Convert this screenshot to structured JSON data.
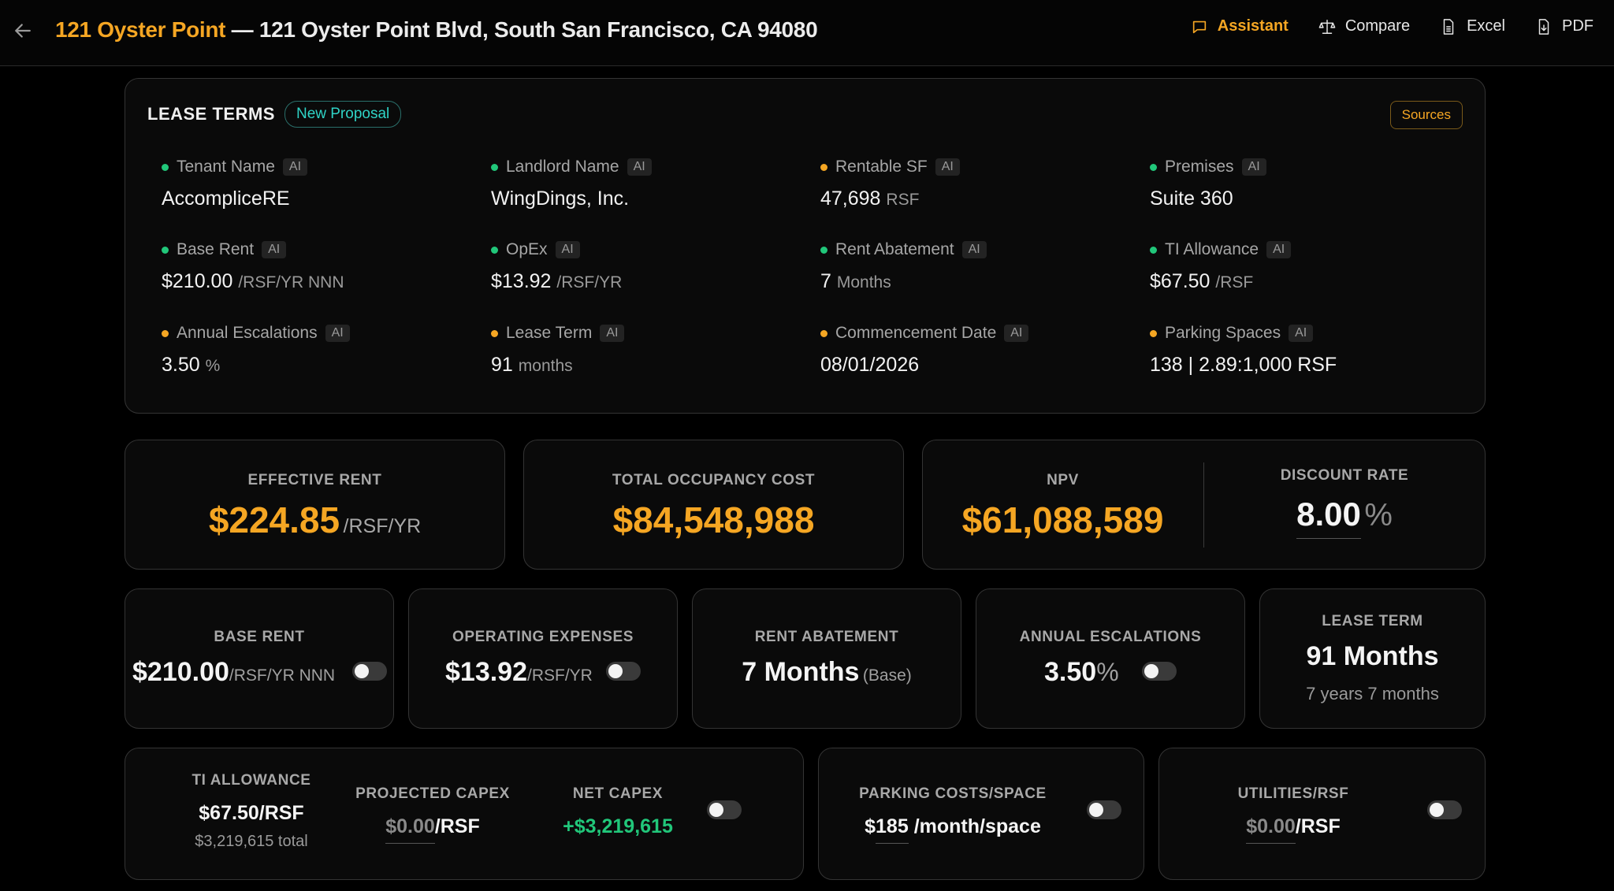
{
  "header": {
    "title_highlight": "121 Oyster Point",
    "title_rest": " — 121 Oyster Point Blvd, South San Francisco, CA 94080",
    "actions": [
      {
        "label": "Assistant",
        "icon": "chat-icon"
      },
      {
        "label": "Compare",
        "icon": "scale-icon"
      },
      {
        "label": "Excel",
        "icon": "spreadsheet-icon"
      },
      {
        "label": "PDF",
        "icon": "download-file-icon"
      }
    ]
  },
  "lease_terms": {
    "title": "LEASE TERMS",
    "badge": "New Proposal",
    "sources_label": "Sources",
    "ai_tag": "AI",
    "colors": {
      "confirmed": "#21c77a",
      "review": "#f5a623"
    },
    "fields": [
      {
        "label": "Tenant Name",
        "value": "AccompliceRE",
        "unit": "",
        "status": "confirmed"
      },
      {
        "label": "Landlord Name",
        "value": "WingDings, Inc.",
        "unit": "",
        "status": "confirmed"
      },
      {
        "label": "Rentable SF",
        "value": "47,698",
        "unit": "RSF",
        "status": "review"
      },
      {
        "label": "Premises",
        "value": "Suite 360",
        "unit": "",
        "status": "confirmed"
      },
      {
        "label": "Base Rent",
        "value": "$210.00",
        "unit": "/RSF/YR NNN",
        "status": "confirmed"
      },
      {
        "label": "OpEx",
        "value": "$13.92",
        "unit": "/RSF/YR",
        "status": "confirmed"
      },
      {
        "label": "Rent Abatement",
        "value": "7",
        "unit": "Months",
        "status": "confirmed"
      },
      {
        "label": "TI Allowance",
        "value": "$67.50",
        "unit": "/RSF",
        "status": "confirmed"
      },
      {
        "label": "Annual Escalations",
        "value": "3.50",
        "unit": "%",
        "status": "review"
      },
      {
        "label": "Lease Term",
        "value": "91",
        "unit": "months",
        "status": "review"
      },
      {
        "label": "Commencement Date",
        "value": "08/01/2026",
        "unit": "",
        "status": "review"
      },
      {
        "label": "Parking Spaces",
        "value": "138 | 2.89:1,000 RSF",
        "unit": "",
        "status": "review"
      }
    ]
  },
  "summary": {
    "effective_rent": {
      "label": "EFFECTIVE RENT",
      "value": "$224.85",
      "unit": "/RSF/YR"
    },
    "total_occupancy": {
      "label": "TOTAL OCCUPANCY COST",
      "value": "$84,548,988"
    },
    "npv": {
      "label": "NPV",
      "value": "$61,088,589"
    },
    "discount_rate": {
      "label": "DISCOUNT RATE",
      "value": "8.00",
      "unit": "%"
    }
  },
  "metrics": {
    "base_rent": {
      "label": "BASE RENT",
      "value": "$210.00",
      "unit": "/RSF/YR NNN"
    },
    "opex": {
      "label": "OPERATING EXPENSES",
      "value": "$13.92",
      "unit": "/RSF/YR"
    },
    "abatement": {
      "label": "RENT ABATEMENT",
      "value": "7 Months",
      "unit": "(Base)"
    },
    "escalations": {
      "label": "ANNUAL ESCALATIONS",
      "value": "3.50",
      "unit": "%"
    },
    "lease_term": {
      "label": "LEASE TERM",
      "value": "91 Months",
      "sub": "7 years 7 months"
    }
  },
  "capex": {
    "ti_label": "TI ALLOWANCE",
    "ti_value": "$67.50/RSF",
    "ti_total": "$3,219,615 total",
    "projected_label": "PROJECTED CAPEX",
    "projected_value": "$0.00",
    "projected_unit": "/RSF",
    "net_label": "NET CAPEX",
    "net_value": "+$3,219,615"
  },
  "parking": {
    "label": "PARKING COSTS/SPACE",
    "currency": "$",
    "value": "185",
    "unit": "/month/space"
  },
  "utilities": {
    "label": "UTILITIES/RSF",
    "value": "$0.00",
    "unit": "/RSF"
  }
}
